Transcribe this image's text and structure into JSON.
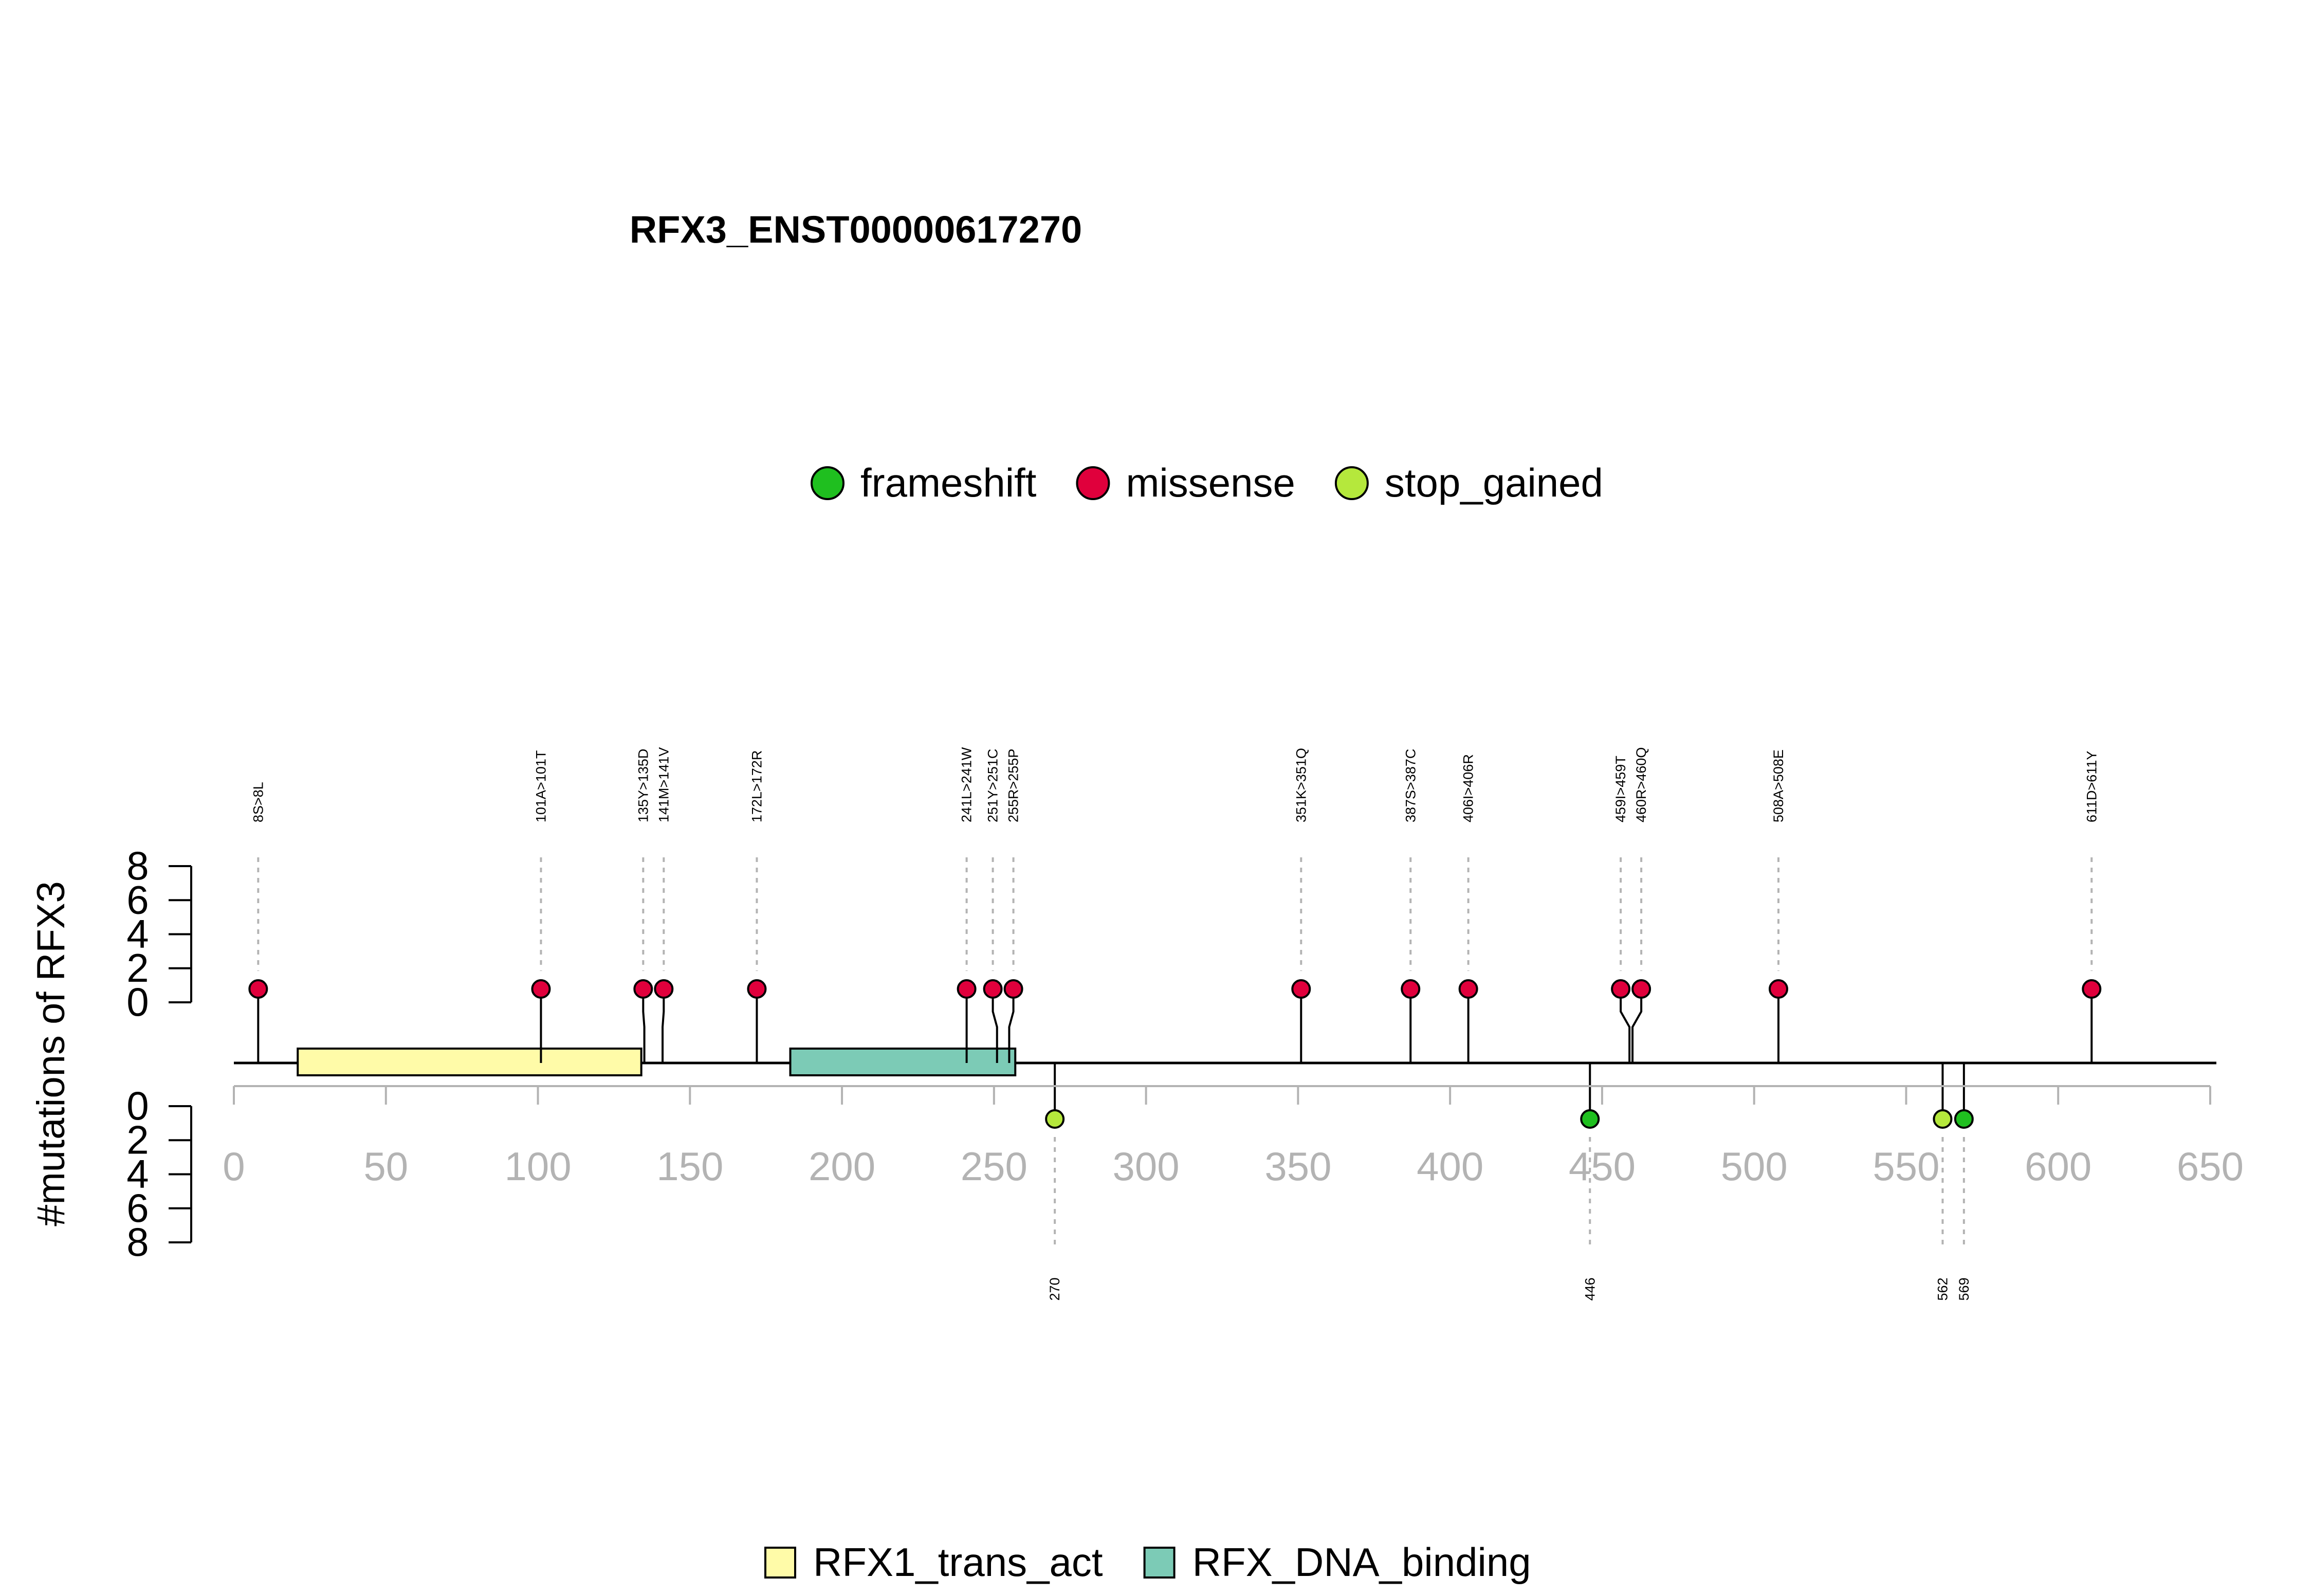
{
  "chart_data": {
    "type": "lollipop",
    "title": "RFX3_ENST00000617270",
    "ylabel": "#mutations of RFX3",
    "xlim": [
      0,
      650
    ],
    "x_ticks": [
      "0",
      "50",
      "100",
      "150",
      "200",
      "250",
      "300",
      "350",
      "400",
      "450",
      "500",
      "550",
      "600",
      "650"
    ],
    "y_ticks_upper": [
      "8",
      "6",
      "4",
      "2",
      "0"
    ],
    "y_ticks_lower": [
      "0",
      "2",
      "4",
      "6",
      "8"
    ],
    "legend_types": [
      {
        "label": "frameshift",
        "color": "#1fbf1f"
      },
      {
        "label": "missense",
        "color": "#e0003c"
      },
      {
        "label": "stop_gained",
        "color": "#b5e83c"
      }
    ],
    "legend_domains": [
      {
        "label": "RFX1_trans_act",
        "color": "#fffba8"
      },
      {
        "label": "RFX_DNA_binding",
        "color": "#7ccbb6"
      }
    ],
    "domains": [
      {
        "name": "RFX1_trans_act",
        "start": 21,
        "end": 134
      },
      {
        "name": "RFX_DNA_binding",
        "start": 183,
        "end": 257
      }
    ],
    "mutations_upper": [
      {
        "label": "8S>8L",
        "pos": 8,
        "type": "missense",
        "count": 1
      },
      {
        "label": "101A>101T",
        "pos": 101,
        "type": "missense",
        "count": 1
      },
      {
        "label": "135Y>135D",
        "pos": 135,
        "type": "missense",
        "count": 1
      },
      {
        "label": "141M>141V",
        "pos": 141,
        "type": "missense",
        "count": 1
      },
      {
        "label": "172L>172R",
        "pos": 172,
        "type": "missense",
        "count": 1
      },
      {
        "label": "241L>241W",
        "pos": 241,
        "type": "missense",
        "count": 1
      },
      {
        "label": "251Y>251C",
        "pos": 251,
        "type": "missense",
        "count": 1
      },
      {
        "label": "255R>255P",
        "pos": 255,
        "type": "missense",
        "count": 1
      },
      {
        "label": "351K>351Q",
        "pos": 351,
        "type": "missense",
        "count": 1
      },
      {
        "label": "387S>387C",
        "pos": 387,
        "type": "missense",
        "count": 1
      },
      {
        "label": "406I>406R",
        "pos": 406,
        "type": "missense",
        "count": 1
      },
      {
        "label": "459I>459T",
        "pos": 459,
        "type": "missense",
        "count": 1
      },
      {
        "label": "460R>460Q",
        "pos": 460,
        "type": "missense",
        "count": 1
      },
      {
        "label": "508A>508E",
        "pos": 508,
        "type": "missense",
        "count": 1
      },
      {
        "label": "611D>611Y",
        "pos": 611,
        "type": "missense",
        "count": 1
      }
    ],
    "mutations_lower": [
      {
        "label": "270",
        "pos": 270,
        "type": "stop_gained",
        "count": 1
      },
      {
        "label": "446",
        "pos": 446,
        "type": "frameshift",
        "count": 1
      },
      {
        "label": "562",
        "pos": 562,
        "type": "stop_gained",
        "count": 1
      },
      {
        "label": "569",
        "pos": 569,
        "type": "frameshift",
        "count": 1
      }
    ]
  }
}
